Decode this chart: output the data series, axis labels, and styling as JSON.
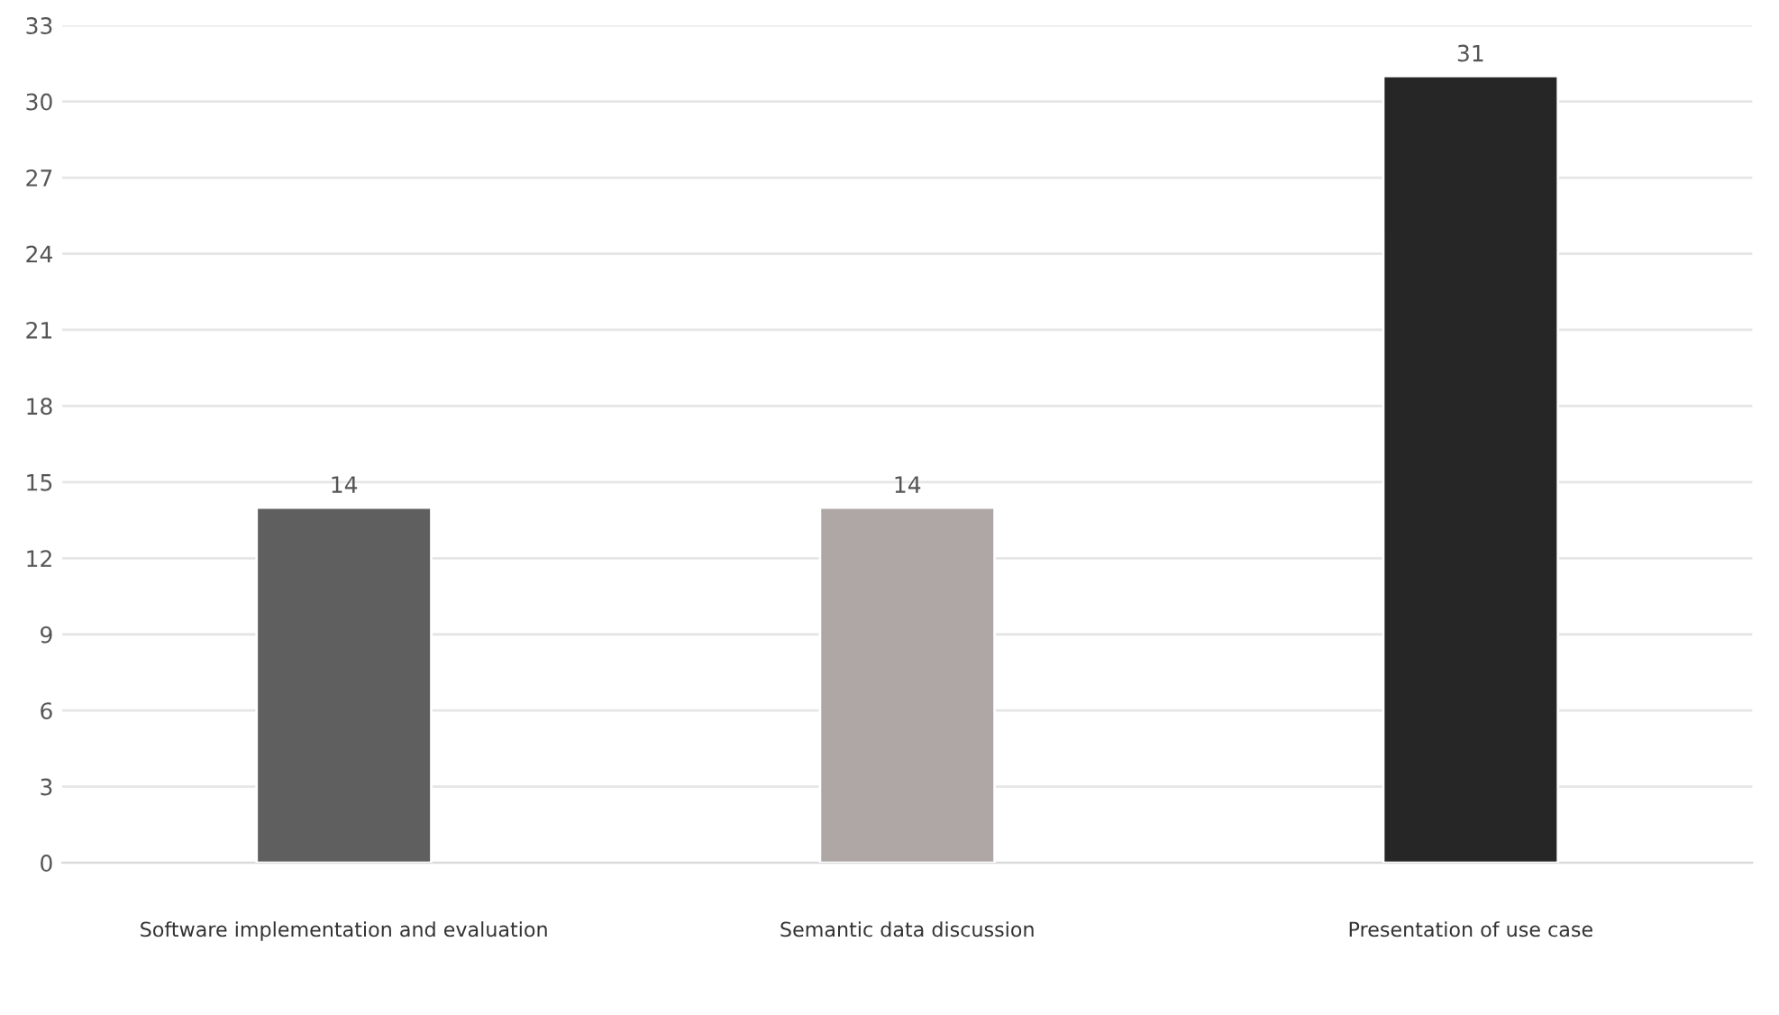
{
  "chart_data": {
    "type": "bar",
    "categories": [
      "Software implementation and evaluation",
      "Semantic data discussion",
      "Presentation of use case"
    ],
    "values": [
      14,
      14,
      31
    ],
    "colors": [
      "#5f5f5f",
      "#afa7a5",
      "#262626"
    ],
    "ylim": [
      0,
      33
    ],
    "yticks": [
      0,
      3,
      6,
      9,
      12,
      15,
      18,
      21,
      24,
      27,
      30,
      33
    ],
    "grid": "y",
    "data_labels": true
  }
}
